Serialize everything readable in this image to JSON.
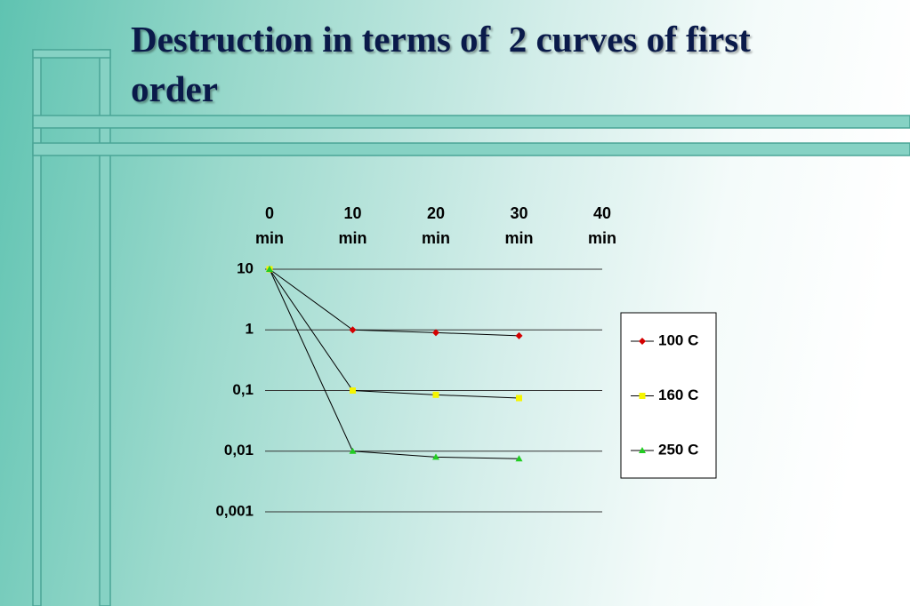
{
  "chart_data": {
    "type": "line",
    "title": "Destruction in terms of  2 curves of first order",
    "categories": [
      "0 min",
      "10 min",
      "20 min",
      "30 min",
      "40 min"
    ],
    "series": [
      {
        "name": "100 C",
        "color": "#d40000",
        "marker": "diamond",
        "values": [
          10,
          1,
          0.9,
          0.8,
          null
        ]
      },
      {
        "name": "160 C",
        "color": "#f5f500",
        "marker": "square",
        "values": [
          10,
          0.1,
          0.085,
          0.075,
          null
        ]
      },
      {
        "name": "250 C",
        "color": "#22cc22",
        "marker": "triangle",
        "values": [
          10,
          0.01,
          0.008,
          0.0075,
          null
        ]
      }
    ],
    "line_color": "#000000",
    "log_scale": true,
    "ylim": [
      0.001,
      10
    ],
    "yticks": [
      10,
      1,
      {
        "value": 0.1,
        "label": "0,1"
      },
      {
        "value": 0.01,
        "label": "0,01"
      },
      {
        "value": 0.001,
        "label": "0,001"
      }
    ],
    "grid": true,
    "legend": "right"
  }
}
